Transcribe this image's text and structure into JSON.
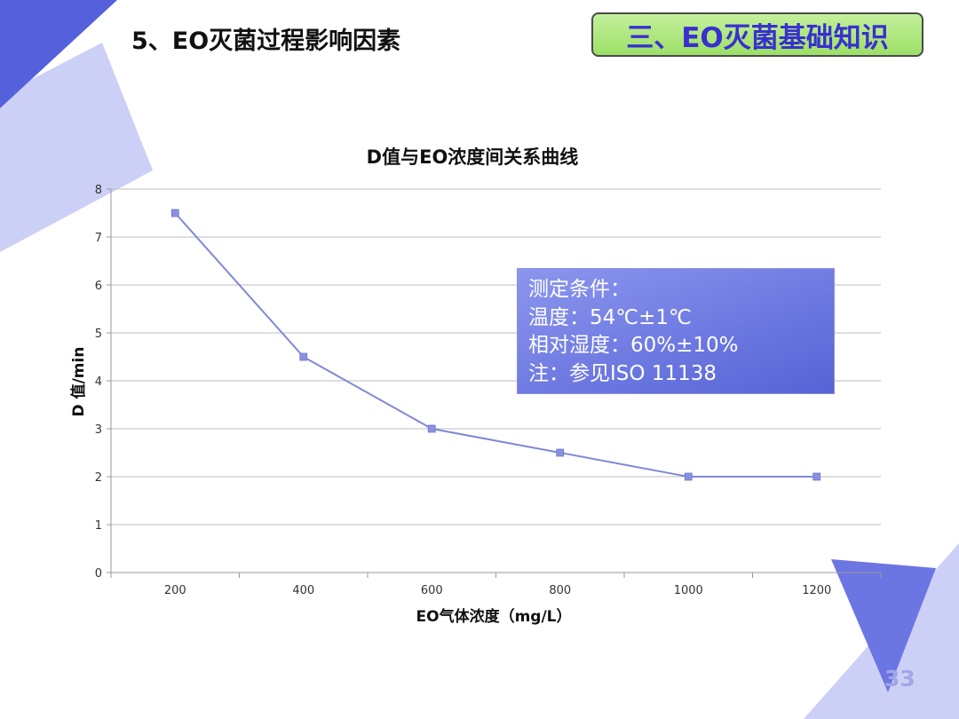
{
  "slide": {
    "title": "5、EO灭菌过程影响因素",
    "section_badge": "三、EO灭菌基础知识",
    "page_number": "33"
  },
  "note": {
    "lines": [
      "测定条件：",
      "温度：54℃±1℃",
      "相对湿度：60%±10%",
      "注：参见ISO 11138"
    ]
  },
  "colors": {
    "line": "#8088d8",
    "marker": "#8a92df",
    "grid": "#bdbdbd",
    "badge_bg": "#a8e57a",
    "badge_text": "#3a2fd0",
    "deco_dark": "#5560dc",
    "deco_light": "#ccd0f6"
  },
  "chart_data": {
    "type": "line",
    "title": "D值与EO浓度间关系曲线",
    "xlabel": "EO气体浓度（mg/L）",
    "ylabel": "D 值/min",
    "categories": [
      "200",
      "400",
      "600",
      "800",
      "1000",
      "1200"
    ],
    "values": [
      7.5,
      4.5,
      3,
      2.5,
      2,
      2
    ],
    "ylim": [
      0,
      8
    ],
    "yticks": [
      "0",
      "1",
      "2",
      "3",
      "4",
      "5",
      "6",
      "7",
      "8"
    ],
    "grid": true,
    "legend": "none"
  }
}
